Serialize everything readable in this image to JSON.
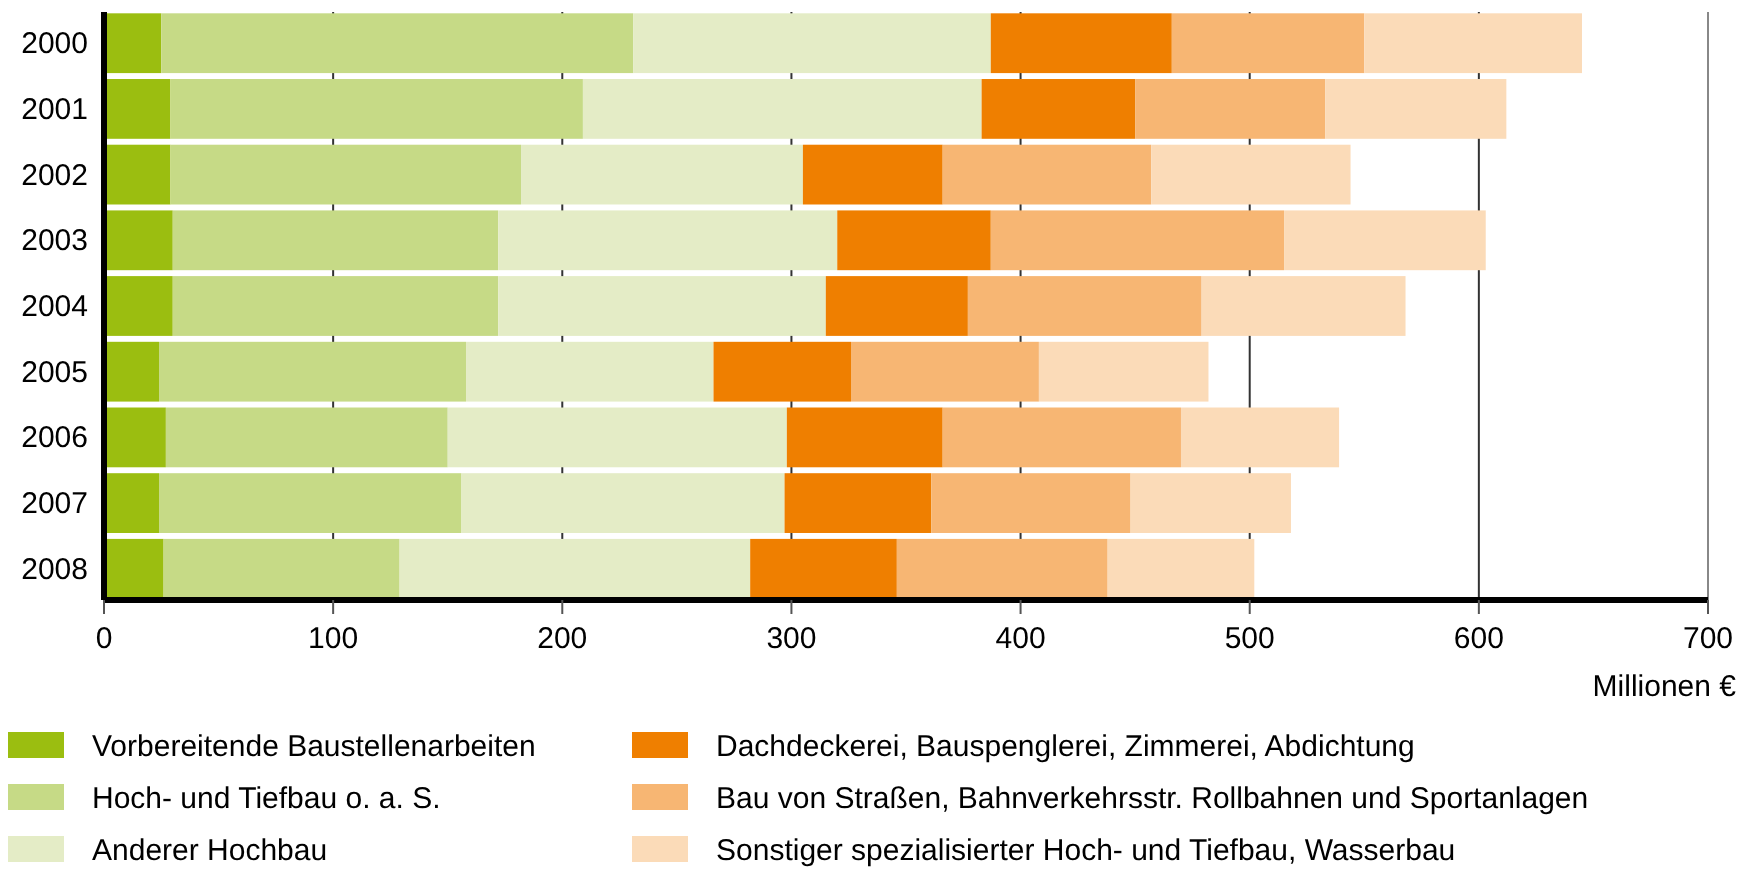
{
  "chart_data": {
    "type": "bar",
    "orientation": "horizontal",
    "stacked": true,
    "xlabel": "Millionen €",
    "categories": [
      "2000",
      "2001",
      "2002",
      "2003",
      "2004",
      "2005",
      "2006",
      "2007",
      "2008"
    ],
    "series": [
      {
        "name": "Vorbereitende Baustellenarbeiten",
        "color": "#9bbe10",
        "values": [
          25,
          29,
          29,
          30,
          30,
          24,
          27,
          24,
          26
        ]
      },
      {
        "name": "Hoch- und Tiefbau o. a. S.",
        "color": "#c6da86",
        "values": [
          206,
          180,
          153,
          142,
          142,
          134,
          123,
          132,
          103
        ]
      },
      {
        "name": "Anderer Hochbau",
        "color": "#e4ecc6",
        "values": [
          156,
          174,
          123,
          148,
          143,
          108,
          148,
          141,
          153
        ]
      },
      {
        "name": "Dachdeckerei, Bauspenglerei, Zimmerei, Abdichtung",
        "color": "#ef7f00",
        "values": [
          79,
          67,
          61,
          67,
          62,
          60,
          68,
          64,
          64
        ]
      },
      {
        "name": "Bau von Straßen, Bahnverkehrsstr. Rollbahnen und Sportanlagen",
        "color": "#f7b673",
        "values": [
          84,
          83,
          91,
          128,
          102,
          82,
          104,
          87,
          92
        ]
      },
      {
        "name": "Sonstiger spezialisierter Hoch- und Tiefbau, Wasserbau",
        "color": "#fbdbb8",
        "values": [
          95,
          79,
          87,
          88,
          89,
          74,
          69,
          70,
          64
        ]
      }
    ],
    "xlim": [
      0,
      700
    ],
    "xticks": [
      0,
      100,
      200,
      300,
      400,
      500,
      600,
      700
    ],
    "grid": "x",
    "legend": "bottom"
  }
}
